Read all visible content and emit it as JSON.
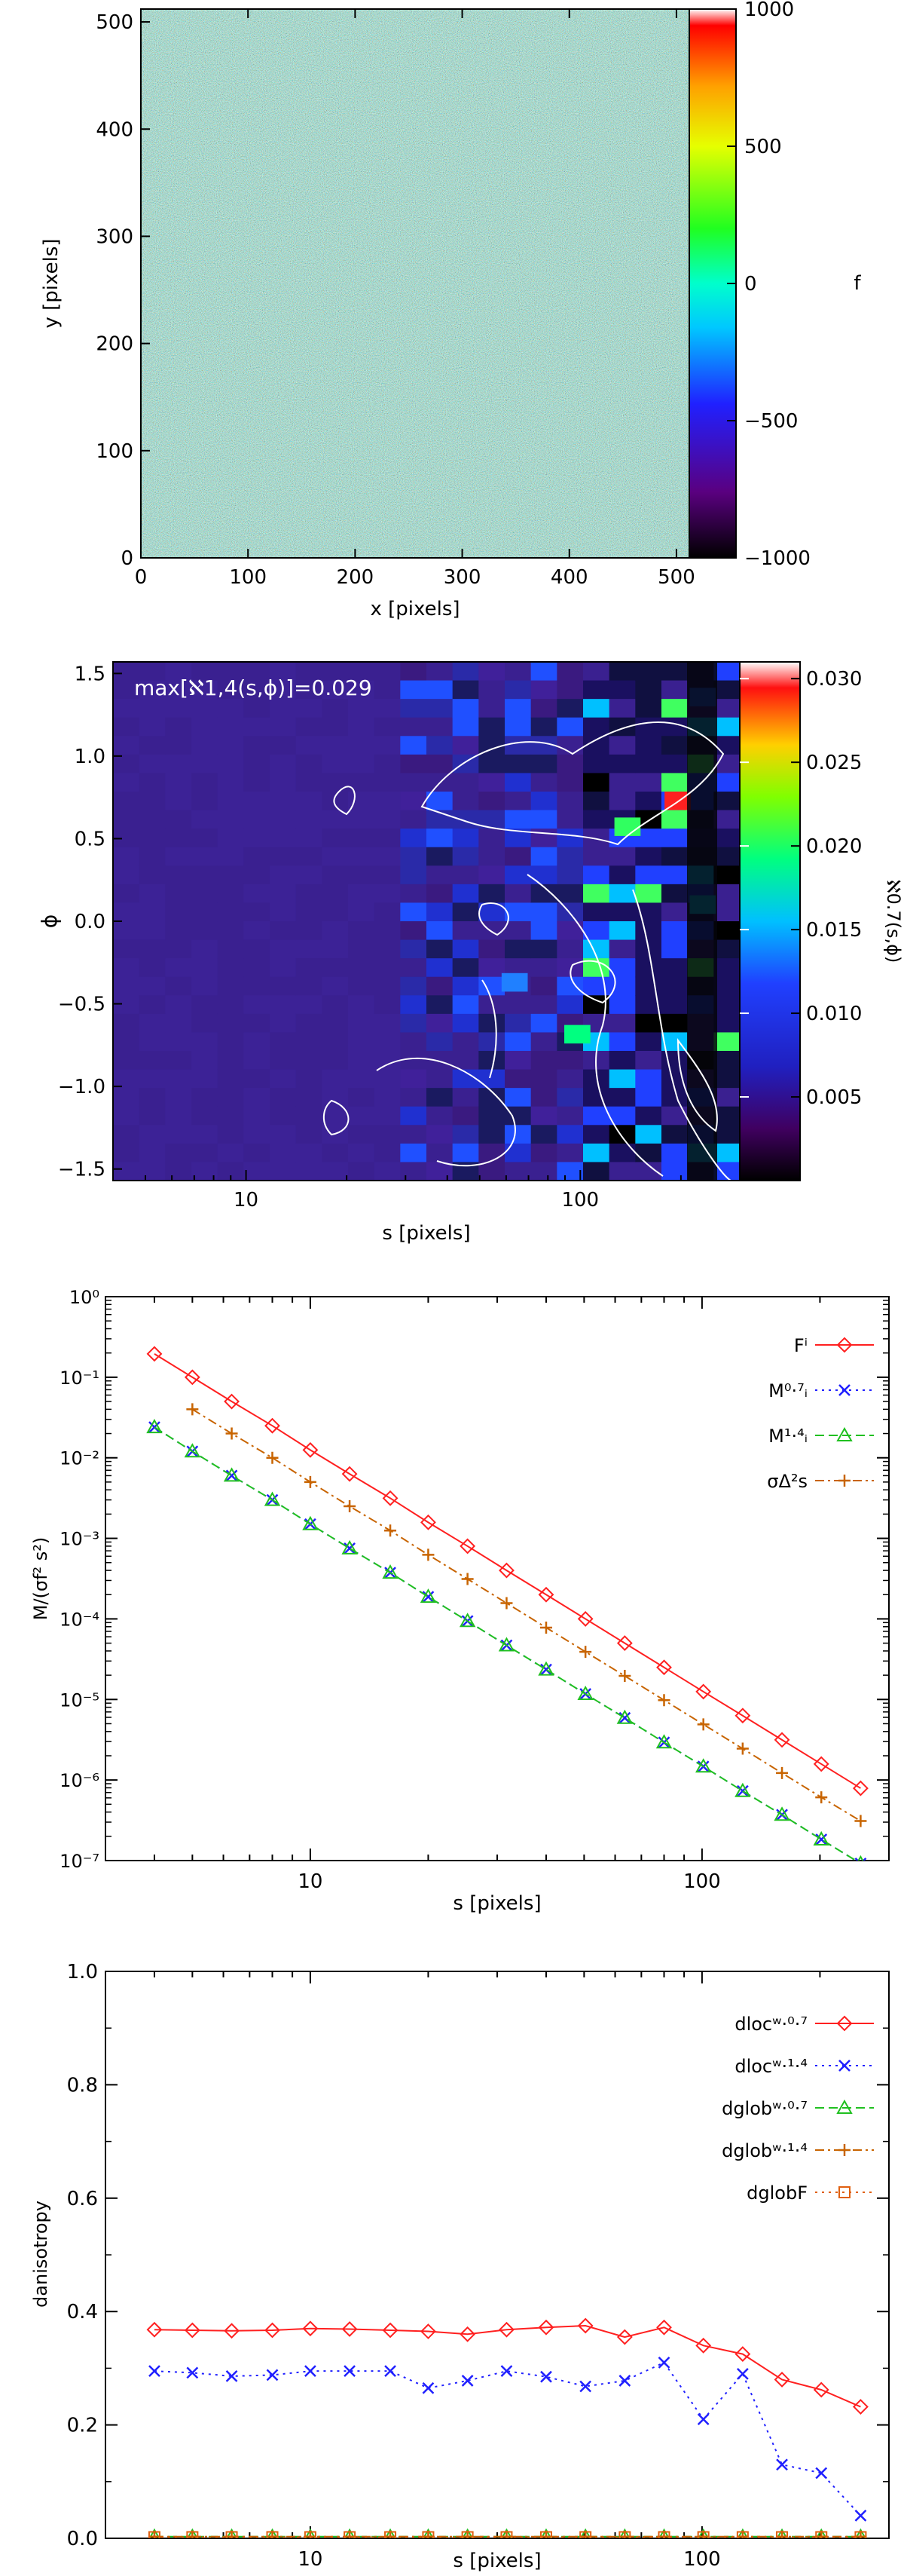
{
  "chart_data": [
    {
      "type": "heatmap",
      "xlabel": "x [pixels]",
      "ylabel": "y [pixels]",
      "xlim": [
        0,
        512
      ],
      "ylim": [
        0,
        512
      ],
      "xticks": [
        0,
        100,
        200,
        300,
        400,
        500
      ],
      "yticks": [
        0,
        100,
        200,
        300,
        400,
        500
      ],
      "colorbar": {
        "label": "f",
        "range": [
          -1000,
          1000
        ],
        "ticks": [
          1000,
          500,
          0,
          -500,
          -1000
        ]
      }
    },
    {
      "type": "heatmap",
      "xlabel": "s [pixels]",
      "ylabel": "ϕ",
      "xscale": "log",
      "xlim": [
        4,
        300
      ],
      "xticks": [
        10,
        100
      ],
      "ylim": [
        -1.57,
        1.57
      ],
      "yticks": [
        1.5,
        1.0,
        0.5,
        0.0,
        -0.5,
        -1.0,
        -1.5
      ],
      "annotation": "max[ℵ1,4(s,ϕ)]=0.029",
      "colorbar": {
        "label": "ℵ0.7(s,ϕ)",
        "range": [
          0,
          0.031
        ],
        "ticks": [
          0.03,
          0.025,
          0.02,
          0.015,
          0.01,
          0.005
        ]
      }
    },
    {
      "type": "line",
      "xlabel": "s [pixels]",
      "ylabel": "M/(σf² s²)",
      "xscale": "log",
      "yscale": "log",
      "xlim": [
        3,
        300
      ],
      "ylim": [
        1e-07,
        1
      ],
      "xticks": [
        10,
        100
      ],
      "yticks": [
        "10⁰",
        "10⁻¹",
        "10⁻²",
        "10⁻³",
        "10⁻⁴",
        "10⁻⁵",
        "10⁻⁶",
        "10⁻⁷"
      ],
      "legend_position": "top-right",
      "series": [
        {
          "name": "Fⁱ",
          "color": "#ff2020",
          "marker": "diamond",
          "x": [
            4,
            5,
            6.3,
            8,
            10,
            12.6,
            16,
            20,
            25.2,
            31.7,
            40,
            50.4,
            63.5,
            80,
            100.8,
            127,
            160,
            201.6,
            254
          ],
          "y": [
            0.195,
            0.1,
            0.05,
            0.025,
            0.0125,
            0.0063,
            0.00315,
            0.00158,
            0.0008,
            0.0004,
            0.0002,
            0.0001,
            5e-05,
            2.5e-05,
            1.25e-05,
            6.3e-06,
            3.15e-06,
            1.58e-06,
            7.9e-07
          ]
        },
        {
          "name": "M⁰·⁷ᵢ",
          "color": "#2020ff",
          "marker": "x",
          "x": [
            4,
            5,
            6.3,
            8,
            10,
            12.6,
            16,
            20,
            25.2,
            31.7,
            40,
            50.4,
            63.5,
            80,
            100.8,
            127,
            160,
            201.6,
            254
          ],
          "y": [
            0.024,
            0.012,
            0.006,
            0.003,
            0.0015,
            0.00075,
            0.000375,
            0.000188,
            9.4e-05,
            4.7e-05,
            2.35e-05,
            1.17e-05,
            5.9e-06,
            2.93e-06,
            1.47e-06,
            7.3e-07,
            3.7e-07,
            1.83e-07,
            9.2e-08
          ]
        },
        {
          "name": "M¹·⁴ᵢ",
          "color": "#20c020",
          "marker": "triangle",
          "x": [
            4,
            5,
            6.3,
            8,
            10,
            12.6,
            16,
            20,
            25.2,
            31.7,
            40,
            50.4,
            63.5,
            80,
            100.8,
            127,
            160,
            201.6,
            254
          ],
          "y": [
            0.024,
            0.012,
            0.006,
            0.003,
            0.0015,
            0.00075,
            0.000375,
            0.000188,
            9.4e-05,
            4.7e-05,
            2.35e-05,
            1.17e-05,
            5.9e-06,
            2.93e-06,
            1.47e-06,
            7.3e-07,
            3.7e-07,
            1.83e-07,
            9.2e-08
          ]
        },
        {
          "name": "σΔ²s",
          "color": "#c86400",
          "marker": "plus",
          "x": [
            5,
            6.3,
            8,
            10,
            12.6,
            16,
            20,
            25.2,
            31.7,
            40,
            50.4,
            63.5,
            80,
            100.8,
            127,
            160,
            201.6,
            254
          ],
          "y": [
            0.04,
            0.02,
            0.01,
            0.005,
            0.0025,
            0.00125,
            0.000625,
            0.000313,
            0.000157,
            7.8e-05,
            3.9e-05,
            1.96e-05,
            9.8e-06,
            4.9e-06,
            2.45e-06,
            1.22e-06,
            6.1e-07,
            3.1e-07
          ]
        }
      ]
    },
    {
      "type": "line",
      "xlabel": "s [pixels]",
      "ylabel": "danisotropy",
      "xscale": "log",
      "xlim": [
        3,
        300
      ],
      "ylim": [
        0,
        1.0
      ],
      "xticks": [
        10,
        100
      ],
      "yticks": [
        "0.0",
        "0.2",
        "0.4",
        "0.6",
        "0.8",
        "1.0"
      ],
      "legend_position": "top-right",
      "series": [
        {
          "name": "dlocʷ·⁰·⁷",
          "color": "#ff2020",
          "marker": "diamond",
          "x": [
            4,
            5,
            6.3,
            8,
            10,
            12.6,
            16,
            20,
            25.2,
            31.7,
            40,
            50.4,
            63.5,
            80,
            100.8,
            127,
            160,
            201.6,
            254
          ],
          "y": [
            0.368,
            0.367,
            0.366,
            0.367,
            0.37,
            0.369,
            0.367,
            0.365,
            0.36,
            0.368,
            0.372,
            0.375,
            0.355,
            0.372,
            0.34,
            0.325,
            0.28,
            0.262,
            0.232
          ]
        },
        {
          "name": "dlocʷ·¹·⁴",
          "color": "#2020ff",
          "marker": "x",
          "x": [
            4,
            5,
            6.3,
            8,
            10,
            12.6,
            16,
            20,
            25.2,
            31.7,
            40,
            50.4,
            63.5,
            80,
            100.8,
            127,
            160,
            201.6,
            254
          ],
          "y": [
            0.295,
            0.292,
            0.286,
            0.288,
            0.295,
            0.295,
            0.295,
            0.265,
            0.278,
            0.295,
            0.285,
            0.268,
            0.278,
            0.31,
            0.21,
            0.29,
            0.13,
            0.115,
            0.04
          ]
        },
        {
          "name": "dglobʷ·⁰·⁷",
          "color": "#20c020",
          "marker": "triangle",
          "x": [
            4,
            5,
            6.3,
            8,
            10,
            12.6,
            16,
            20,
            25.2,
            31.7,
            40,
            50.4,
            63.5,
            80,
            100.8,
            127,
            160,
            201.6,
            254
          ],
          "y": [
            0.003,
            0.003,
            0.003,
            0.003,
            0.003,
            0.003,
            0.003,
            0.003,
            0.003,
            0.003,
            0.003,
            0.003,
            0.003,
            0.003,
            0.003,
            0.003,
            0.003,
            0.003,
            0.003
          ]
        },
        {
          "name": "dglobʷ·¹·⁴",
          "color": "#c86400",
          "marker": "plus",
          "x": [
            4,
            5,
            6.3,
            8,
            10,
            12.6,
            16,
            20,
            25.2,
            31.7,
            40,
            50.4,
            63.5,
            80,
            100.8,
            127,
            160,
            201.6,
            254
          ],
          "y": [
            0.003,
            0.003,
            0.003,
            0.003,
            0.003,
            0.003,
            0.003,
            0.003,
            0.003,
            0.003,
            0.003,
            0.003,
            0.003,
            0.003,
            0.003,
            0.003,
            0.003,
            0.003,
            0.003
          ]
        },
        {
          "name": "dglobF",
          "color": "#e06010",
          "marker": "square",
          "x": [
            4,
            5,
            6.3,
            8,
            10,
            12.6,
            16,
            20,
            25.2,
            31.7,
            40,
            50.4,
            63.5,
            80,
            100.8,
            127,
            160,
            201.6,
            254
          ],
          "y": [
            0.002,
            0.002,
            0.002,
            0.002,
            0.002,
            0.002,
            0.002,
            0.002,
            0.002,
            0.002,
            0.002,
            0.002,
            0.002,
            0.002,
            0.002,
            0.002,
            0.002,
            0.002,
            0.002
          ]
        }
      ]
    }
  ]
}
